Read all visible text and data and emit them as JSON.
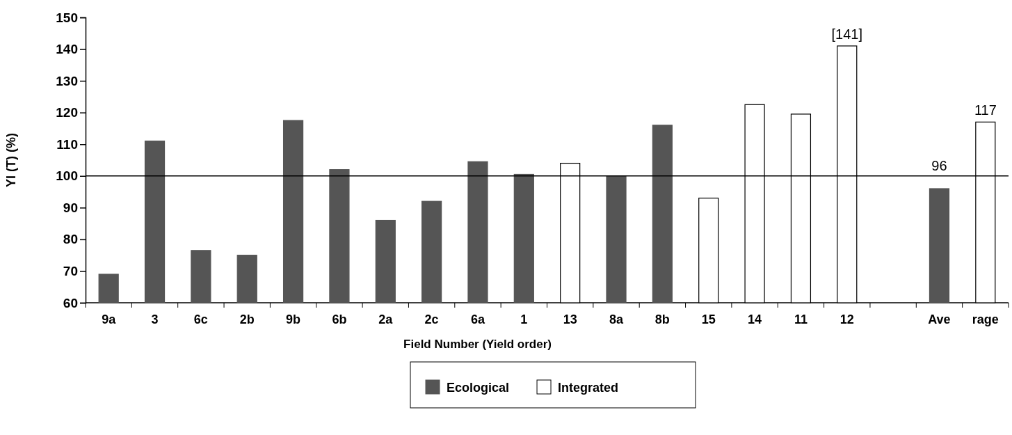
{
  "chart_data": {
    "type": "bar",
    "xlabel": "Field Number (Yield order)",
    "ylabel": "YI (T)  (%)",
    "categories": [
      "9a",
      "3",
      "6c",
      "2b",
      "9b",
      "6b",
      "2a",
      "2c",
      "6a",
      "1",
      "13",
      "8a",
      "8b",
      "15",
      "14",
      "11",
      "12",
      null,
      "Ave",
      "rage"
    ],
    "series": [
      {
        "name": "Ecological",
        "color": "#555555",
        "values": [
          69,
          111,
          76.5,
          75,
          117.5,
          102,
          86,
          92,
          104.5,
          100.5,
          null,
          100,
          116,
          null,
          null,
          null,
          null,
          null,
          96,
          null
        ],
        "value_labels": [
          null,
          null,
          null,
          null,
          null,
          null,
          null,
          null,
          null,
          null,
          null,
          null,
          null,
          null,
          null,
          null,
          null,
          null,
          "96",
          null
        ]
      },
      {
        "name": "Integrated",
        "color": "#ffffff",
        "values": [
          null,
          null,
          null,
          null,
          null,
          null,
          null,
          null,
          null,
          null,
          104,
          null,
          null,
          93,
          122.5,
          119.5,
          141,
          null,
          null,
          117
        ],
        "value_labels": [
          null,
          null,
          null,
          null,
          null,
          null,
          null,
          null,
          null,
          null,
          null,
          null,
          null,
          null,
          null,
          null,
          "[141]",
          null,
          null,
          "117"
        ]
      }
    ],
    "ylim": [
      60,
      150
    ],
    "yticks": [
      60,
      70,
      80,
      90,
      100,
      110,
      120,
      130,
      140,
      150
    ],
    "ref_lines": [
      {
        "axis": "y",
        "value": 100,
        "color": "#000000"
      }
    ],
    "grid": false,
    "legend": "bottom"
  }
}
